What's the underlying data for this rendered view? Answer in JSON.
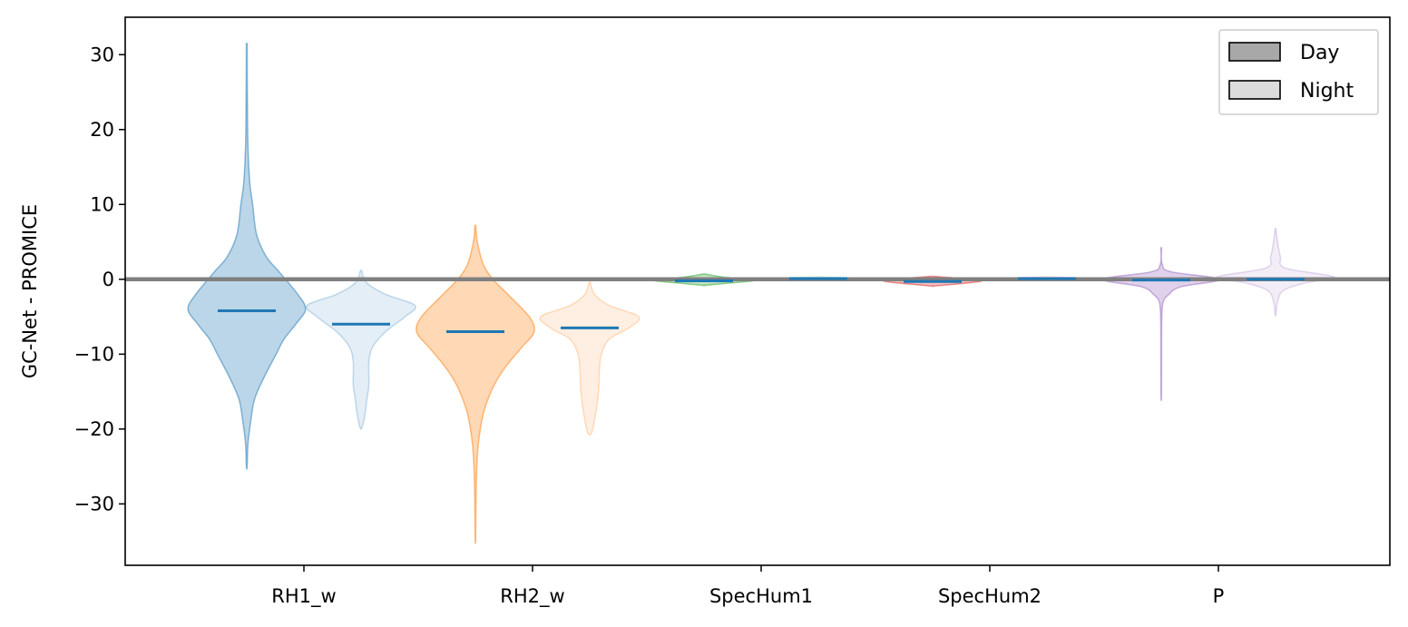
{
  "chart_data": {
    "type": "violin",
    "ylabel": "GC-Net - PROMICE",
    "xlabel": "",
    "ylim": [
      -38.2,
      35
    ],
    "yticks": [
      -30,
      -20,
      -10,
      0,
      10,
      20,
      30
    ],
    "ytick_labels": [
      "−30",
      "−20",
      "−10",
      "0",
      "10",
      "20",
      "30"
    ],
    "categories": [
      "RH1_w",
      "RH2_w",
      "SpecHum1",
      "SpecHum2",
      "P"
    ],
    "reference_line": 0,
    "grid": false,
    "legend": {
      "position": "top-right",
      "entries": [
        {
          "label": "Day",
          "color": "#a8a8a8"
        },
        {
          "label": "Night",
          "color": "#dcdcdc"
        }
      ]
    },
    "median_color": "#1f77b4",
    "groups": [
      {
        "category": "RH1_w",
        "color": "#1f77b4",
        "day": {
          "median": -4.2,
          "min": -25,
          "max": 31.5,
          "profile": [
            [
              31.5,
              0.004
            ],
            [
              25,
              0.006
            ],
            [
              18,
              0.012
            ],
            [
              13,
              0.03
            ],
            [
              10,
              0.06
            ],
            [
              6,
              0.1
            ],
            [
              3,
              0.2
            ],
            [
              1,
              0.33
            ],
            [
              -2,
              0.52
            ],
            [
              -4,
              0.6
            ],
            [
              -6,
              0.5
            ],
            [
              -8,
              0.38
            ],
            [
              -10,
              0.3
            ],
            [
              -13,
              0.18
            ],
            [
              -16,
              0.08
            ],
            [
              -19,
              0.04
            ],
            [
              -22,
              0.012
            ],
            [
              -25,
              0.004
            ]
          ]
        },
        "night": {
          "median": -6,
          "min": -19.8,
          "max": 1.2,
          "profile": [
            [
              1.2,
              0.005
            ],
            [
              -0.5,
              0.06
            ],
            [
              -2,
              0.25
            ],
            [
              -3.5,
              0.55
            ],
            [
              -5,
              0.45
            ],
            [
              -7,
              0.25
            ],
            [
              -9,
              0.12
            ],
            [
              -11,
              0.08
            ],
            [
              -14,
              0.08
            ],
            [
              -16,
              0.06
            ],
            [
              -18,
              0.04
            ],
            [
              -19.8,
              0.01
            ]
          ]
        }
      },
      {
        "category": "RH2_w",
        "color": "#ff7f0e",
        "day": {
          "median": -7,
          "min": -34.7,
          "max": 7.2,
          "profile": [
            [
              7.2,
              0.004
            ],
            [
              5,
              0.02
            ],
            [
              2,
              0.08
            ],
            [
              0,
              0.18
            ],
            [
              -2,
              0.33
            ],
            [
              -5,
              0.55
            ],
            [
              -7,
              0.6
            ],
            [
              -9,
              0.48
            ],
            [
              -11,
              0.35
            ],
            [
              -13,
              0.24
            ],
            [
              -15,
              0.16
            ],
            [
              -18,
              0.08
            ],
            [
              -22,
              0.03
            ],
            [
              -26,
              0.012
            ],
            [
              -30,
              0.006
            ],
            [
              -34.7,
              0.003
            ]
          ]
        },
        "night": {
          "median": -6.5,
          "min": -20.5,
          "max": -0.3,
          "profile": [
            [
              -0.3,
              0.005
            ],
            [
              -2,
              0.05
            ],
            [
              -3.5,
              0.2
            ],
            [
              -5,
              0.5
            ],
            [
              -6.5,
              0.4
            ],
            [
              -8,
              0.2
            ],
            [
              -10,
              0.12
            ],
            [
              -12,
              0.1
            ],
            [
              -15,
              0.09
            ],
            [
              -18,
              0.06
            ],
            [
              -20.5,
              0.02
            ]
          ]
        }
      },
      {
        "category": "SpecHum1",
        "color": "#2ca02c",
        "day": {
          "median": -0.2,
          "min": -0.8,
          "max": 0.7,
          "profile": [
            [
              0.7,
              0.01
            ],
            [
              0.3,
              0.2
            ],
            [
              0,
              0.45
            ],
            [
              -0.2,
              0.5
            ],
            [
              -0.4,
              0.35
            ],
            [
              -0.8,
              0.01
            ]
          ]
        },
        "night": {
          "median": 0.1,
          "min": -0.1,
          "max": 0.3,
          "profile": [
            [
              0.3,
              0.01
            ],
            [
              0.1,
              0.5
            ],
            [
              -0.1,
              0.01
            ]
          ]
        }
      },
      {
        "category": "SpecHum2",
        "color": "#d62728",
        "day": {
          "median": -0.3,
          "min": -0.9,
          "max": 0.4,
          "profile": [
            [
              0.4,
              0.01
            ],
            [
              0.1,
              0.3
            ],
            [
              -0.2,
              0.5
            ],
            [
              -0.5,
              0.35
            ],
            [
              -0.9,
              0.01
            ]
          ]
        },
        "night": {
          "median": 0.1,
          "min": -0.1,
          "max": 0.3,
          "profile": [
            [
              0.3,
              0.01
            ],
            [
              0.1,
              0.5
            ],
            [
              -0.1,
              0.01
            ]
          ]
        }
      },
      {
        "category": "P",
        "color": "#9467bd",
        "day": {
          "median": -0.1,
          "min": -15.5,
          "max": 4.2,
          "profile": [
            [
              4.2,
              0.004
            ],
            [
              2,
              0.01
            ],
            [
              1,
              0.1
            ],
            [
              0,
              0.6
            ],
            [
              -1,
              0.2
            ],
            [
              -2,
              0.08
            ],
            [
              -3,
              0.02
            ],
            [
              -5,
              0.006
            ],
            [
              -10,
              0.004
            ],
            [
              -15.5,
              0.003
            ]
          ]
        },
        "night": {
          "median": 0,
          "min": -4.7,
          "max": 6.8,
          "profile": [
            [
              6.8,
              0.004
            ],
            [
              5,
              0.02
            ],
            [
              3,
              0.05
            ],
            [
              1.5,
              0.1
            ],
            [
              0.3,
              0.6
            ],
            [
              -0.5,
              0.3
            ],
            [
              -1.5,
              0.08
            ],
            [
              -3,
              0.02
            ],
            [
              -4.7,
              0.004
            ]
          ]
        }
      }
    ]
  }
}
